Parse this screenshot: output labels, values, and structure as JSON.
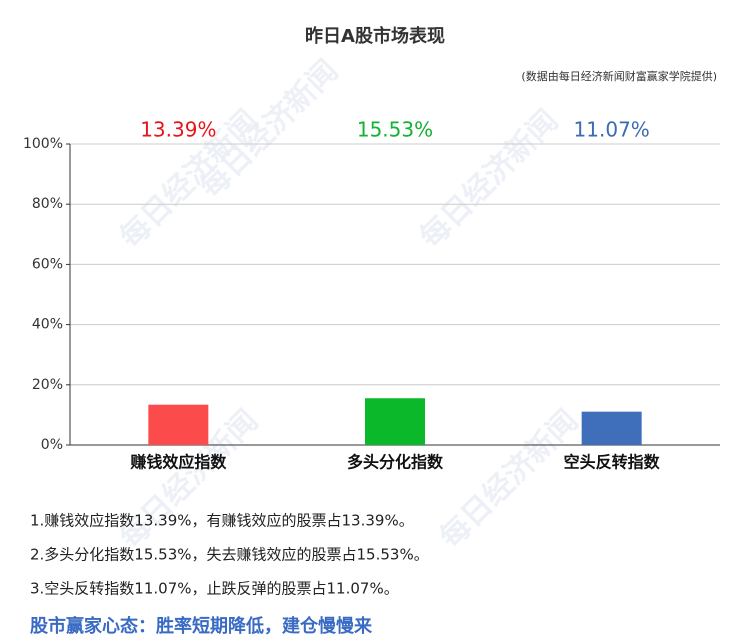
{
  "chart_data": {
    "type": "bar",
    "title": "昨日A股市场表现",
    "subtitle": "(数据由每日经济新闻财富赢家学院提供)",
    "watermark": "每日经济新闻",
    "categories": [
      "赚钱效应指数",
      "多头分化指数",
      "空头反转指数"
    ],
    "values": [
      13.39,
      15.53,
      11.07
    ],
    "value_labels": [
      "13.39%",
      "15.53%",
      "11.07%"
    ],
    "colors": [
      "#fb4b4b",
      "#0bb82a",
      "#3f6fbb"
    ],
    "label_colors": [
      "#e8141b",
      "#14b234",
      "#3e6bb0"
    ],
    "ylim": [
      0,
      100
    ],
    "yticks": [
      {
        "value": 0,
        "label": "0%"
      },
      {
        "value": 20,
        "label": "20%"
      },
      {
        "value": 40,
        "label": "40%"
      },
      {
        "value": 60,
        "label": "60%"
      },
      {
        "value": 80,
        "label": "80%"
      },
      {
        "value": 100,
        "label": "100%"
      }
    ],
    "grid": true,
    "notes": [
      "1.赚钱效应指数13.39%，有赚钱效应的股票占13.39%。",
      "2.多头分化指数15.53%，失去赚钱效应的股票占15.53%。",
      "3.空头反转指数11.07%，止跌反弹的股票占11.07%。"
    ],
    "conclusion": "股市赢家心态：胜率短期降低，建仓慢慢来"
  }
}
